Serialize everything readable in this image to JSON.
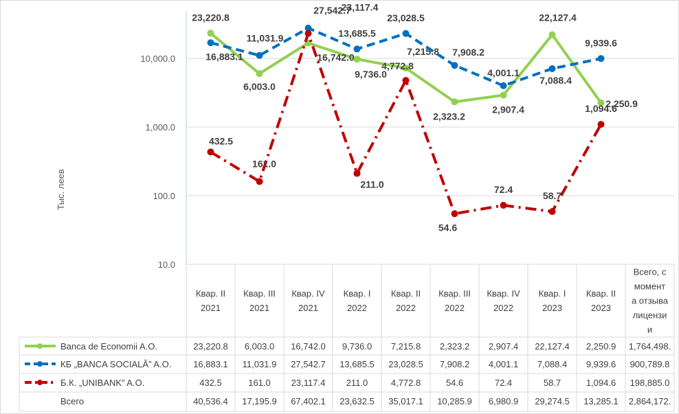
{
  "chart_data": {
    "type": "line",
    "yscale": "log",
    "ylabel": "Тыс. леев",
    "ylim": [
      10,
      100000
    ],
    "yticks": [
      "10.0",
      "100.0",
      "1,000.0",
      "10,000.0"
    ],
    "grid": true,
    "categories": [
      "Квар. II 2021",
      "Квар. III 2021",
      "Квар. IV 2021",
      "Квар. I 2022",
      "Квар. II 2022",
      "Квар. III 2022",
      "Квар. IV 2022",
      "Квар. I 2023",
      "Квар. II 2023",
      "Всего, с момента отзыва лицензии"
    ],
    "series": [
      {
        "name": "Banca de Economii A.O.",
        "color": "#92d050",
        "style": "solid",
        "values": [
          23220.8,
          6003.0,
          16742.0,
          9736.0,
          7215.8,
          2323.2,
          2907.4,
          22127.4,
          2250.9,
          1764498.0
        ],
        "labels": [
          "23,220.8",
          "6,003.0",
          "16,742.0",
          "9,736.0",
          "7,215.8",
          "2,323.2",
          "2,907.4",
          "22,127.4",
          "2,250.9",
          "1,764,498."
        ]
      },
      {
        "name": "КБ „BANCA SOCIALĂ” A.O.",
        "color": "#0070c0",
        "style": "dash",
        "values": [
          16883.1,
          11031.9,
          27542.7,
          13685.5,
          23028.5,
          7908.2,
          4001.1,
          7088.4,
          9939.6,
          900789.8
        ],
        "labels": [
          "16,883.1",
          "11,031.9",
          "27,542.7",
          "13,685.5",
          "23,028.5",
          "7,908.2",
          "4,001.1",
          "7,088.4",
          "9,939.6",
          "900,789.8"
        ]
      },
      {
        "name": "Б.К. „UNIBANK” A.O.",
        "color": "#c00000",
        "style": "dashdot",
        "values": [
          432.5,
          161.0,
          23117.4,
          211.0,
          4772.8,
          54.6,
          72.4,
          58.7,
          1094.6,
          198885.0
        ],
        "labels": [
          "432.5",
          "161.0",
          "23,117.4",
          "211.0",
          "4,772.8",
          "54.6",
          "72.4",
          "58.7",
          "1,094.6",
          "198,885.0"
        ]
      }
    ],
    "total": {
      "name": "Всего",
      "labels": [
        "40,536.4",
        "17,195.9",
        "67,402.1",
        "23,632.5",
        "35,017.1",
        "10,285.9",
        "6,980.9",
        "29,274.5",
        "13,285.1",
        "2,864,172."
      ]
    }
  }
}
